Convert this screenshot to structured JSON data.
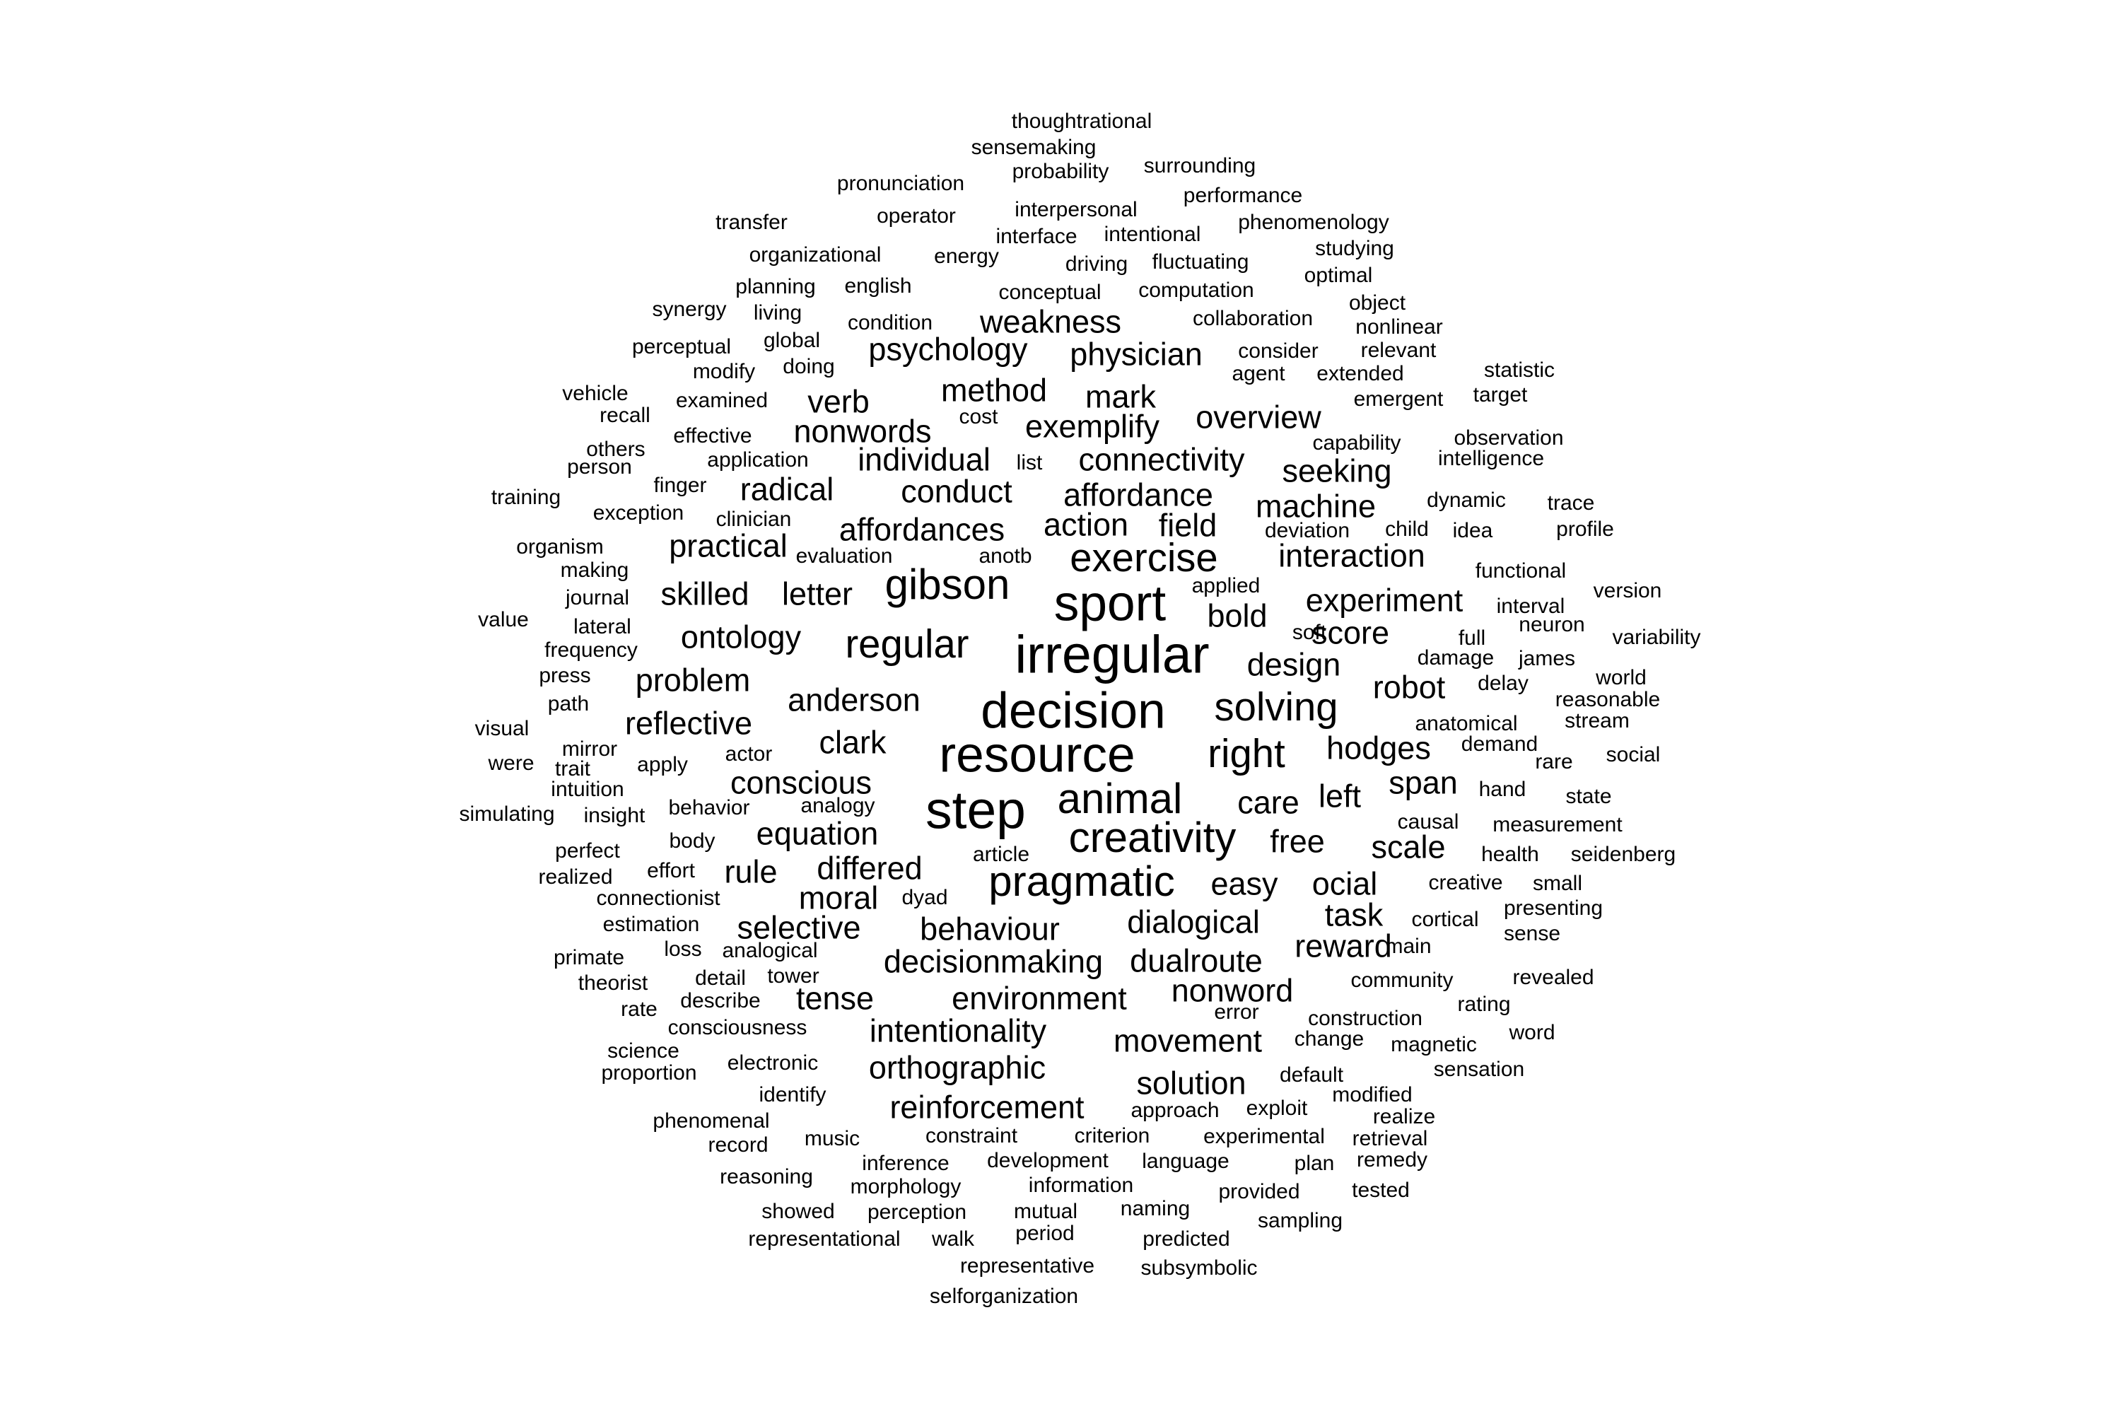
{
  "word_cloud": {
    "words": [
      {
        "text": "irregular",
        "size": 10
      },
      {
        "text": "step",
        "size": 10
      },
      {
        "text": "resource",
        "size": 9.5
      },
      {
        "text": "sport",
        "size": 9.5
      },
      {
        "text": "decision",
        "size": 9.5
      },
      {
        "text": "pragmatic",
        "size": 8
      },
      {
        "text": "creativity",
        "size": 8
      },
      {
        "text": "animal",
        "size": 8
      },
      {
        "text": "gibson",
        "size": 8
      },
      {
        "text": "exercise",
        "size": 7.5
      },
      {
        "text": "solving",
        "size": 7.5
      },
      {
        "text": "right",
        "size": 7.5
      },
      {
        "text": "regular",
        "size": 7.5
      },
      {
        "text": "affordances",
        "size": 6
      },
      {
        "text": "movement",
        "size": 6
      },
      {
        "text": "orthographic",
        "size": 6
      },
      {
        "text": "intentionality",
        "size": 6
      },
      {
        "text": "reinforcement",
        "size": 6
      },
      {
        "text": "solution",
        "size": 6
      },
      {
        "text": "decisionmaking",
        "size": 6
      },
      {
        "text": "dualroute",
        "size": 6
      },
      {
        "text": "dialogical",
        "size": 6
      },
      {
        "text": "behaviour",
        "size": 6
      },
      {
        "text": "selective",
        "size": 6
      },
      {
        "text": "environment",
        "size": 6
      },
      {
        "text": "nonword",
        "size": 6
      },
      {
        "text": "reward",
        "size": 6
      },
      {
        "text": "task",
        "size": 6
      },
      {
        "text": "ocial",
        "size": 6
      },
      {
        "text": "easy",
        "size": 6
      },
      {
        "text": "scale",
        "size": 6
      },
      {
        "text": "free",
        "size": 6
      },
      {
        "text": "care",
        "size": 6
      },
      {
        "text": "left",
        "size": 6
      },
      {
        "text": "span",
        "size": 6
      },
      {
        "text": "hodges",
        "size": 6
      },
      {
        "text": "robot",
        "size": 6
      },
      {
        "text": "design",
        "size": 6
      },
      {
        "text": "bold",
        "size": 6
      },
      {
        "text": "score",
        "size": 6
      },
      {
        "text": "experiment",
        "size": 6
      },
      {
        "text": "interaction",
        "size": 6
      },
      {
        "text": "machine",
        "size": 6
      },
      {
        "text": "seeking",
        "size": 6
      },
      {
        "text": "overview",
        "size": 6
      },
      {
        "text": "connectivity",
        "size": 6
      },
      {
        "text": "affordance",
        "size": 6
      },
      {
        "text": "field",
        "size": 6
      },
      {
        "text": "action",
        "size": 6
      },
      {
        "text": "mark",
        "size": 6
      },
      {
        "text": "exemplify",
        "size": 6
      },
      {
        "text": "physician",
        "size": 6
      },
      {
        "text": "weakness",
        "size": 6
      },
      {
        "text": "psychology",
        "size": 6
      },
      {
        "text": "method",
        "size": 6
      },
      {
        "text": "verb",
        "size": 6
      },
      {
        "text": "nonwords",
        "size": 6
      },
      {
        "text": "individual",
        "size": 6
      },
      {
        "text": "conduct",
        "size": 6
      },
      {
        "text": "radical",
        "size": 6
      },
      {
        "text": "practical",
        "size": 6
      },
      {
        "text": "skilled",
        "size": 6
      },
      {
        "text": "letter",
        "size": 6
      },
      {
        "text": "ontology",
        "size": 6
      },
      {
        "text": "problem",
        "size": 6
      },
      {
        "text": "anderson",
        "size": 6
      },
      {
        "text": "reflective",
        "size": 6
      },
      {
        "text": "clark",
        "size": 6
      },
      {
        "text": "conscious",
        "size": 6
      },
      {
        "text": "equation",
        "size": 6
      },
      {
        "text": "differed",
        "size": 6
      },
      {
        "text": "rule",
        "size": 6
      },
      {
        "text": "moral",
        "size": 6
      },
      {
        "text": "tense",
        "size": 6
      },
      {
        "text": "thoughtrational",
        "size": 4
      },
      {
        "text": "sensemaking",
        "size": 4
      },
      {
        "text": "probability",
        "size": 4
      },
      {
        "text": "surrounding",
        "size": 4
      },
      {
        "text": "pronunciation",
        "size": 4
      },
      {
        "text": "performance",
        "size": 4
      },
      {
        "text": "transfer",
        "size": 4
      },
      {
        "text": "operator",
        "size": 4
      },
      {
        "text": "interpersonal",
        "size": 4
      },
      {
        "text": "phenomenology",
        "size": 4
      },
      {
        "text": "interface",
        "size": 4
      },
      {
        "text": "intentional",
        "size": 4
      },
      {
        "text": "organizational",
        "size": 4
      },
      {
        "text": "energy",
        "size": 4
      },
      {
        "text": "driving",
        "size": 4
      },
      {
        "text": "fluctuating",
        "size": 4
      },
      {
        "text": "studying",
        "size": 4
      },
      {
        "text": "planning",
        "size": 4
      },
      {
        "text": "english",
        "size": 4
      },
      {
        "text": "conceptual",
        "size": 4
      },
      {
        "text": "computation",
        "size": 4
      },
      {
        "text": "optimal",
        "size": 4
      },
      {
        "text": "synergy",
        "size": 4
      },
      {
        "text": "living",
        "size": 4
      },
      {
        "text": "condition",
        "size": 4
      },
      {
        "text": "collaboration",
        "size": 4
      },
      {
        "text": "object",
        "size": 4
      },
      {
        "text": "perceptual",
        "size": 4
      },
      {
        "text": "global",
        "size": 4
      },
      {
        "text": "nonlinear",
        "size": 4
      },
      {
        "text": "consider",
        "size": 4
      },
      {
        "text": "relevant",
        "size": 4
      },
      {
        "text": "modify",
        "size": 4
      },
      {
        "text": "doing",
        "size": 4
      },
      {
        "text": "agent",
        "size": 4
      },
      {
        "text": "extended",
        "size": 4
      },
      {
        "text": "statistic",
        "size": 4
      },
      {
        "text": "vehicle",
        "size": 4
      },
      {
        "text": "examined",
        "size": 4
      },
      {
        "text": "cost",
        "size": 4
      },
      {
        "text": "emergent",
        "size": 4
      },
      {
        "text": "target",
        "size": 4
      },
      {
        "text": "recall",
        "size": 4
      },
      {
        "text": "effective",
        "size": 4
      },
      {
        "text": "capability",
        "size": 4
      },
      {
        "text": "observation",
        "size": 4
      },
      {
        "text": "others",
        "size": 4
      },
      {
        "text": "application",
        "size": 4
      },
      {
        "text": "list",
        "size": 4
      },
      {
        "text": "intelligence",
        "size": 4
      },
      {
        "text": "person",
        "size": 4
      },
      {
        "text": "finger",
        "size": 4
      },
      {
        "text": "training",
        "size": 4
      },
      {
        "text": "dynamic",
        "size": 4
      },
      {
        "text": "trace",
        "size": 4
      },
      {
        "text": "exception",
        "size": 4
      },
      {
        "text": "clinician",
        "size": 4
      },
      {
        "text": "deviation",
        "size": 4
      },
      {
        "text": "child",
        "size": 4
      },
      {
        "text": "idea",
        "size": 4
      },
      {
        "text": "profile",
        "size": 4
      },
      {
        "text": "organism",
        "size": 4
      },
      {
        "text": "evaluation",
        "size": 4
      },
      {
        "text": "anotb",
        "size": 4
      },
      {
        "text": "making",
        "size": 4
      },
      {
        "text": "functional",
        "size": 4
      },
      {
        "text": "applied",
        "size": 4
      },
      {
        "text": "journal",
        "size": 4
      },
      {
        "text": "version",
        "size": 4
      },
      {
        "text": "value",
        "size": 4
      },
      {
        "text": "interval",
        "size": 4
      },
      {
        "text": "lateral",
        "size": 4
      },
      {
        "text": "neuron",
        "size": 4
      },
      {
        "text": "soft",
        "size": 4
      },
      {
        "text": "full",
        "size": 4
      },
      {
        "text": "variability",
        "size": 4
      },
      {
        "text": "frequency",
        "size": 4
      },
      {
        "text": "damage",
        "size": 4
      },
      {
        "text": "james",
        "size": 4
      },
      {
        "text": "press",
        "size": 4
      },
      {
        "text": "world",
        "size": 4
      },
      {
        "text": "delay",
        "size": 4
      },
      {
        "text": "path",
        "size": 4
      },
      {
        "text": "reasonable",
        "size": 4
      },
      {
        "text": "anatomical",
        "size": 4
      },
      {
        "text": "stream",
        "size": 4
      },
      {
        "text": "visual",
        "size": 4
      },
      {
        "text": "demand",
        "size": 4
      },
      {
        "text": "mirror",
        "size": 4
      },
      {
        "text": "actor",
        "size": 4
      },
      {
        "text": "social",
        "size": 4
      },
      {
        "text": "were",
        "size": 4
      },
      {
        "text": "apply",
        "size": 4
      },
      {
        "text": "rare",
        "size": 4
      },
      {
        "text": "trait",
        "size": 4
      },
      {
        "text": "intuition",
        "size": 4
      },
      {
        "text": "hand",
        "size": 4
      },
      {
        "text": "state",
        "size": 4
      },
      {
        "text": "behavior",
        "size": 4
      },
      {
        "text": "analogy",
        "size": 4
      },
      {
        "text": "simulating",
        "size": 4
      },
      {
        "text": "insight",
        "size": 4
      },
      {
        "text": "causal",
        "size": 4
      },
      {
        "text": "measurement",
        "size": 4
      },
      {
        "text": "body",
        "size": 4
      },
      {
        "text": "perfect",
        "size": 4
      },
      {
        "text": "article",
        "size": 4
      },
      {
        "text": "health",
        "size": 4
      },
      {
        "text": "seidenberg",
        "size": 4
      },
      {
        "text": "effort",
        "size": 4
      },
      {
        "text": "realized",
        "size": 4
      },
      {
        "text": "dyad",
        "size": 4
      },
      {
        "text": "creative",
        "size": 4
      },
      {
        "text": "small",
        "size": 4
      },
      {
        "text": "connectionist",
        "size": 4
      },
      {
        "text": "presenting",
        "size": 4
      },
      {
        "text": "cortical",
        "size": 4
      },
      {
        "text": "estimation",
        "size": 4
      },
      {
        "text": "sense",
        "size": 4
      },
      {
        "text": "loss",
        "size": 4
      },
      {
        "text": "analogical",
        "size": 4
      },
      {
        "text": "main",
        "size": 4
      },
      {
        "text": "primate",
        "size": 4
      },
      {
        "text": "detail",
        "size": 4
      },
      {
        "text": "tower",
        "size": 4
      },
      {
        "text": "revealed",
        "size": 4
      },
      {
        "text": "theorist",
        "size": 4
      },
      {
        "text": "community",
        "size": 4
      },
      {
        "text": "describe",
        "size": 4
      },
      {
        "text": "rating",
        "size": 4
      },
      {
        "text": "rate",
        "size": 4
      },
      {
        "text": "error",
        "size": 4
      },
      {
        "text": "construction",
        "size": 4
      },
      {
        "text": "consciousness",
        "size": 4
      },
      {
        "text": "word",
        "size": 4
      },
      {
        "text": "change",
        "size": 4
      },
      {
        "text": "magnetic",
        "size": 4
      },
      {
        "text": "science",
        "size": 4
      },
      {
        "text": "electronic",
        "size": 4
      },
      {
        "text": "sensation",
        "size": 4
      },
      {
        "text": "proportion",
        "size": 4
      },
      {
        "text": "default",
        "size": 4
      },
      {
        "text": "identify",
        "size": 4
      },
      {
        "text": "modified",
        "size": 4
      },
      {
        "text": "exploit",
        "size": 4
      },
      {
        "text": "approach",
        "size": 4
      },
      {
        "text": "realize",
        "size": 4
      },
      {
        "text": "phenomenal",
        "size": 4
      },
      {
        "text": "music",
        "size": 4
      },
      {
        "text": "constraint",
        "size": 4
      },
      {
        "text": "criterion",
        "size": 4
      },
      {
        "text": "experimental",
        "size": 4
      },
      {
        "text": "retrieval",
        "size": 4
      },
      {
        "text": "record",
        "size": 4
      },
      {
        "text": "inference",
        "size": 4
      },
      {
        "text": "development",
        "size": 4
      },
      {
        "text": "language",
        "size": 4
      },
      {
        "text": "plan",
        "size": 4
      },
      {
        "text": "remedy",
        "size": 4
      },
      {
        "text": "reasoning",
        "size": 4
      },
      {
        "text": "morphology",
        "size": 4
      },
      {
        "text": "information",
        "size": 4
      },
      {
        "text": "provided",
        "size": 4
      },
      {
        "text": "tested",
        "size": 4
      },
      {
        "text": "showed",
        "size": 4
      },
      {
        "text": "perception",
        "size": 4
      },
      {
        "text": "mutual",
        "size": 4
      },
      {
        "text": "naming",
        "size": 4
      },
      {
        "text": "sampling",
        "size": 4
      },
      {
        "text": "representational",
        "size": 4
      },
      {
        "text": "walk",
        "size": 4
      },
      {
        "text": "period",
        "size": 4
      },
      {
        "text": "predicted",
        "size": 4
      },
      {
        "text": "representative",
        "size": 4
      },
      {
        "text": "subsymbolic",
        "size": 4
      },
      {
        "text": "selforganization",
        "size": 4
      }
    ]
  }
}
